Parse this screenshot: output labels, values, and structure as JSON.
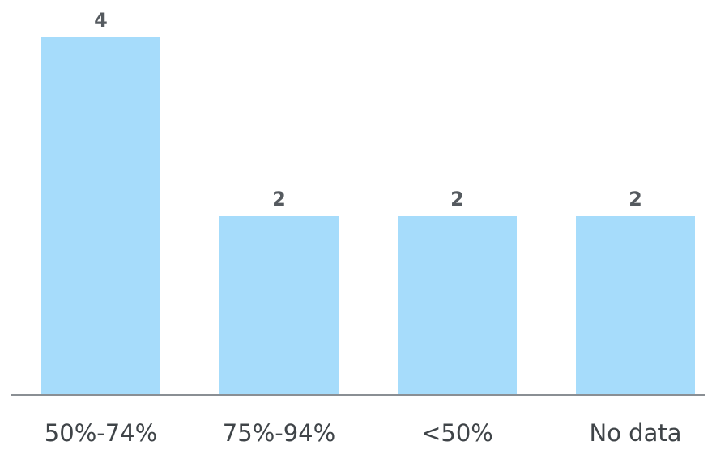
{
  "chart_data": {
    "type": "bar",
    "categories": [
      "50%-74%",
      "75%-94%",
      "<50%",
      "No data"
    ],
    "values": [
      4,
      2,
      2,
      2
    ],
    "data_labels": [
      "4",
      "2",
      "2",
      "2"
    ],
    "title": "",
    "xlabel": "",
    "ylabel": "",
    "ylim": [
      0,
      4
    ],
    "grid": false,
    "legend": "none",
    "colors": {
      "bar": "#a6dcfb",
      "axis": "#8a8f94",
      "data_label": "#555a5f",
      "tick_label": "#3f4448"
    }
  }
}
